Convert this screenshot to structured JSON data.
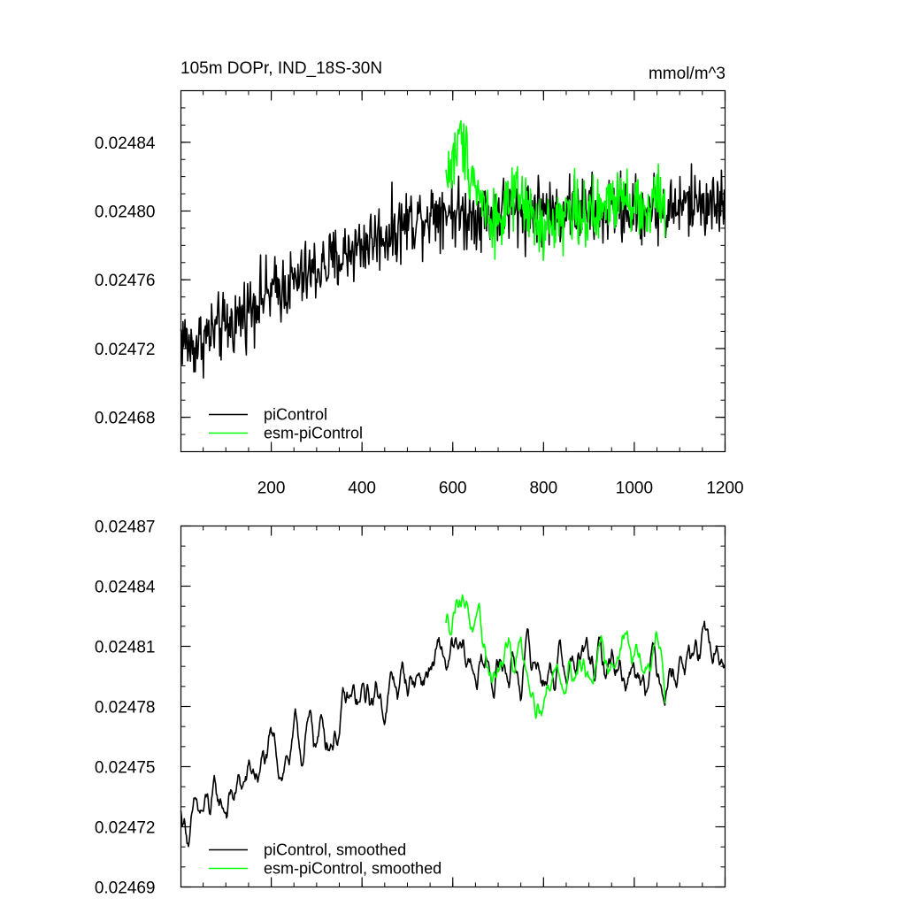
{
  "chart_data": [
    {
      "type": "line",
      "title": "105m DOPr, IND_18S-30N",
      "units_label": "mmol/m^3",
      "xlim": [
        1,
        1200
      ],
      "ylim": [
        0.02466,
        0.02487
      ],
      "x_ticks": [
        200,
        400,
        600,
        800,
        1000,
        1200
      ],
      "x_minor_step": 50,
      "y_ticks": [
        0.02468,
        0.02472,
        0.02476,
        0.0248,
        0.02484
      ],
      "y_tick_labels": [
        "0.02468",
        "0.02472",
        "0.02476",
        "0.02480",
        "0.02484"
      ],
      "y_minor_step": 1e-05,
      "legend_position": "bottom-left",
      "series": [
        {
          "name": "piControl",
          "color": "#000000",
          "x": [
            1,
            25,
            50,
            75,
            100,
            125,
            150,
            175,
            200,
            225,
            250,
            275,
            300,
            325,
            350,
            375,
            400,
            425,
            450,
            475,
            500,
            525,
            550,
            575,
            600,
            625,
            650,
            675,
            700,
            725,
            750,
            775,
            800,
            825,
            850,
            875,
            900,
            925,
            950,
            975,
            1000,
            1025,
            1050,
            1075,
            1100,
            1125,
            1150,
            1175,
            1200
          ],
          "values": [
            0.024728,
            0.02472,
            0.024726,
            0.02473,
            0.024732,
            0.024737,
            0.024744,
            0.02475,
            0.024752,
            0.024756,
            0.024758,
            0.024762,
            0.024766,
            0.024769,
            0.024772,
            0.024778,
            0.02478,
            0.024784,
            0.024786,
            0.024789,
            0.024794,
            0.024796,
            0.024799,
            0.024802,
            0.0248,
            0.024797,
            0.024799,
            0.024798,
            0.0248,
            0.024801,
            0.024798,
            0.024802,
            0.024801,
            0.024798,
            0.024803,
            0.024801,
            0.0248,
            0.024798,
            0.024802,
            0.024801,
            0.024799,
            0.024803,
            0.024802,
            0.0248,
            0.024803,
            0.024804,
            0.024806,
            0.024803,
            0.024805
          ],
          "noise": 1.8e-05
        },
        {
          "name": "esm-piControl",
          "color": "#00ff00",
          "x": [
            585,
            600,
            615,
            625,
            640,
            660,
            680,
            700,
            725,
            750,
            775,
            800,
            825,
            850,
            875,
            900,
            925,
            950,
            975,
            1000,
            1025,
            1050,
            1068
          ],
          "values": [
            0.02482,
            0.024828,
            0.024842,
            0.024838,
            0.024825,
            0.024808,
            0.024798,
            0.024795,
            0.024802,
            0.024808,
            0.024795,
            0.024786,
            0.024796,
            0.024799,
            0.024803,
            0.024794,
            0.0248,
            0.024806,
            0.024815,
            0.024804,
            0.024797,
            0.024812,
            0.024792
          ],
          "noise": 1.7e-05
        }
      ]
    },
    {
      "type": "line",
      "title": "",
      "units_label": "",
      "xlim": [
        1,
        1200
      ],
      "ylim": [
        0.02469,
        0.02487
      ],
      "x_ticks": [
        200,
        400,
        600,
        800,
        1000,
        1200
      ],
      "x_minor_step": 50,
      "y_ticks": [
        0.02469,
        0.02472,
        0.02475,
        0.02478,
        0.02481,
        0.02484,
        0.02487
      ],
      "y_tick_labels": [
        "0.02469",
        "0.02472",
        "0.02475",
        "0.02478",
        "0.02481",
        "0.02484",
        "0.02487"
      ],
      "y_minor_step": 1e-05,
      "legend_position": "bottom-left",
      "series": [
        {
          "name": "piControl, smoothed",
          "color": "#000000",
          "x": [
            1,
            25,
            50,
            75,
            100,
            125,
            150,
            175,
            200,
            225,
            250,
            275,
            300,
            325,
            350,
            375,
            400,
            425,
            450,
            475,
            500,
            525,
            550,
            575,
            600,
            625,
            650,
            675,
            700,
            725,
            750,
            775,
            800,
            825,
            850,
            875,
            900,
            925,
            950,
            975,
            1000,
            1025,
            1050,
            1075,
            1100,
            1125,
            1150,
            1175,
            1200
          ],
          "values": [
            0.024726,
            0.024718,
            0.024724,
            0.024728,
            0.024732,
            0.024737,
            0.024743,
            0.024749,
            0.024752,
            0.024756,
            0.024758,
            0.024762,
            0.024766,
            0.024769,
            0.024772,
            0.024778,
            0.02478,
            0.024784,
            0.024786,
            0.024789,
            0.024794,
            0.024796,
            0.024799,
            0.024802,
            0.0248,
            0.024799,
            0.0248,
            0.024798,
            0.0248,
            0.024801,
            0.024799,
            0.024802,
            0.024801,
            0.024799,
            0.024803,
            0.024801,
            0.0248,
            0.024799,
            0.024802,
            0.024801,
            0.0248,
            0.024803,
            0.024802,
            0.024801,
            0.024803,
            0.024804,
            0.024806,
            0.024804,
            0.024805
          ],
          "noise": 8.5e-06
        },
        {
          "name": "esm-piControl, smoothed",
          "color": "#00ff00",
          "x": [
            585,
            600,
            615,
            625,
            640,
            660,
            680,
            700,
            725,
            750,
            775,
            800,
            825,
            850,
            875,
            900,
            925,
            950,
            975,
            1000,
            1025,
            1050,
            1068
          ],
          "values": [
            0.02482,
            0.024828,
            0.024843,
            0.024838,
            0.024826,
            0.024808,
            0.024799,
            0.024796,
            0.024804,
            0.024808,
            0.024796,
            0.024786,
            0.024797,
            0.0248,
            0.024804,
            0.024795,
            0.0248,
            0.024806,
            0.024815,
            0.024804,
            0.024797,
            0.024812,
            0.024793
          ],
          "noise": 7e-06
        }
      ]
    }
  ]
}
